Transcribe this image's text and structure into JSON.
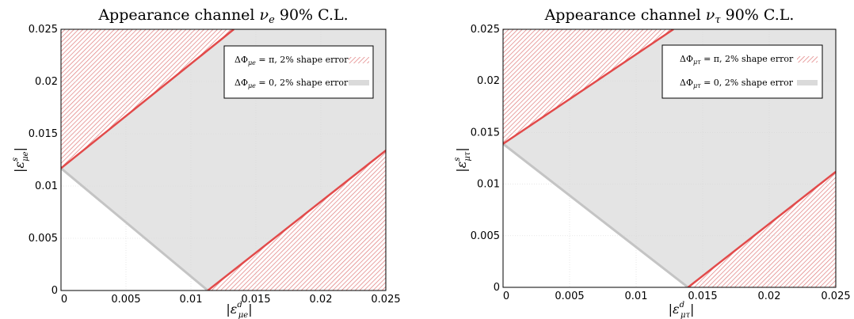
{
  "chart_data": [
    {
      "type": "area",
      "title": "Appearance channel  ν_e  90% C.L.",
      "xlabel": "|ε^d_μe|",
      "ylabel": "|ε^s_μe|",
      "xlim": [
        0,
        0.025
      ],
      "ylim": [
        0,
        0.025
      ],
      "xticks": [
        "0",
        "0.005",
        "0.01",
        "0.015",
        "0.02",
        "0.025"
      ],
      "yticks": [
        "0",
        "0.005",
        "0.01",
        "0.015",
        "0.02",
        "0.025"
      ],
      "grid": true,
      "legend_position": "top-right",
      "series": [
        {
          "name": "ΔΦ_μe = π, 2% shape error",
          "style": "red hatched",
          "color": "#e24a4a",
          "regions": [
            {
              "boundary": [
                [
                  0,
                  0.0117
                ],
                [
                  0.0133,
                  0.025
                ]
              ],
              "side": "upper-left"
            },
            {
              "boundary": [
                [
                  0.0113,
                  0
                ],
                [
                  0.025,
                  0.0134
                ]
              ],
              "side": "lower-right"
            }
          ]
        },
        {
          "name": "ΔΦ_μe = 0, 2% shape error",
          "style": "gray fill",
          "color": "#c8c8c8",
          "boundary": [
            [
              0,
              0.0117
            ],
            [
              0.0113,
              0
            ]
          ]
        }
      ]
    },
    {
      "type": "area",
      "title": "Appearance channel  ν_τ  90% C.L.",
      "xlabel": "|ε^d_μτ|",
      "ylabel": "|ε^s_μτ|",
      "xlim": [
        0,
        0.025
      ],
      "ylim": [
        0,
        0.025
      ],
      "xticks": [
        "0",
        "0.005",
        "0.01",
        "0.015",
        "0.02",
        "0.025"
      ],
      "yticks": [
        "0",
        "0.005",
        "0.01",
        "0.015",
        "0.02",
        "0.025"
      ],
      "grid": true,
      "legend_position": "top-right",
      "series": [
        {
          "name": "ΔΦ_μτ = π, 2% shape error",
          "style": "red hatched",
          "color": "#e24a4a",
          "regions": [
            {
              "boundary": [
                [
                  0,
                  0.0139
                ],
                [
                  0.0128,
                  0.025
                ]
              ],
              "side": "upper-left"
            },
            {
              "boundary": [
                [
                  0.0139,
                  0
                ],
                [
                  0.025,
                  0.0112
                ]
              ],
              "side": "lower-right"
            }
          ]
        },
        {
          "name": "ΔΦ_μτ = 0, 2% shape error",
          "style": "gray fill",
          "color": "#c8c8c8",
          "boundary": [
            [
              0,
              0.0139
            ],
            [
              0.0139,
              0
            ]
          ]
        }
      ]
    }
  ],
  "panels": [
    {
      "title_pre": "Appearance channel ",
      "title_nu": "ν",
      "title_sub": "e",
      "title_post": "  90% C.L.",
      "xlabel_eps": "ε",
      "xlabel_sup": "d",
      "xlabel_sub": "μe",
      "ylabel_eps": "ε",
      "ylabel_sup": "s",
      "ylabel_sub": "μe",
      "legend_red_pre": "ΔΦ",
      "legend_red_sub": "μe",
      "legend_red_post": " = π, 2% shape error",
      "legend_gray_pre": "ΔΦ",
      "legend_gray_sub": "μe",
      "legend_gray_post": " = 0, 2% shape error"
    },
    {
      "title_pre": "Appearance channel ",
      "title_nu": "ν",
      "title_sub": "τ",
      "title_post": "  90% C.L.",
      "xlabel_eps": "ε",
      "xlabel_sup": "d",
      "xlabel_sub": "μτ",
      "ylabel_eps": "ε",
      "ylabel_sup": "s",
      "ylabel_sub": "μτ",
      "legend_red_pre": "ΔΦ",
      "legend_red_sub": "μτ",
      "legend_red_post": " = π, 2% shape error",
      "legend_gray_pre": "ΔΦ",
      "legend_gray_sub": "μτ",
      "legend_gray_post": " = 0, 2% shape error"
    }
  ]
}
